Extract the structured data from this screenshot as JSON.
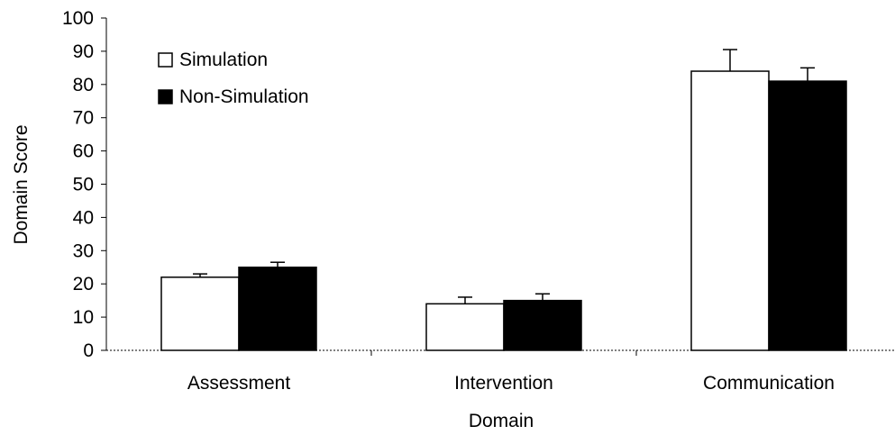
{
  "chart_data": {
    "type": "bar",
    "title": "",
    "xlabel": "Domain",
    "ylabel": "Domain Score",
    "ylim": [
      0,
      100
    ],
    "yticks": [
      0,
      10,
      20,
      30,
      40,
      50,
      60,
      70,
      80,
      90,
      100
    ],
    "grid": false,
    "legend_position": "top-left",
    "categories": [
      "Assessment",
      "Intervention",
      "Communication"
    ],
    "series": [
      {
        "name": "Simulation",
        "color": "#ffffff",
        "values": [
          22,
          14,
          84
        ],
        "error": [
          1,
          2,
          6.5
        ]
      },
      {
        "name": "Non-Simulation",
        "color": "#000000",
        "values": [
          25,
          15,
          81
        ],
        "error": [
          1.5,
          2,
          4
        ]
      }
    ]
  }
}
